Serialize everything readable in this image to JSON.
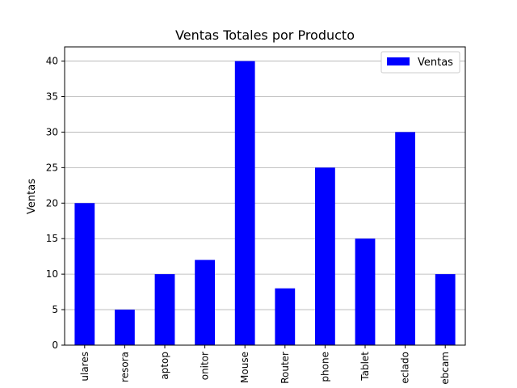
{
  "chart_data": {
    "type": "bar",
    "title": "Ventas Totales por Producto",
    "xlabel": "",
    "ylabel": "Ventas",
    "categories": [
      "ulares",
      "resora",
      "aptop",
      "onitor",
      "Mouse",
      "Router",
      "phone",
      "Tablet",
      "eclado",
      "ebcam"
    ],
    "series": [
      {
        "name": "Ventas",
        "values": [
          20,
          5,
          10,
          12,
          40,
          8,
          25,
          15,
          30,
          10
        ],
        "color": "#0000ff"
      }
    ],
    "ylim": [
      0,
      42
    ],
    "yticks": [
      0,
      5,
      10,
      15,
      20,
      25,
      30,
      35,
      40
    ],
    "grid": "y",
    "legend": "top-right"
  }
}
